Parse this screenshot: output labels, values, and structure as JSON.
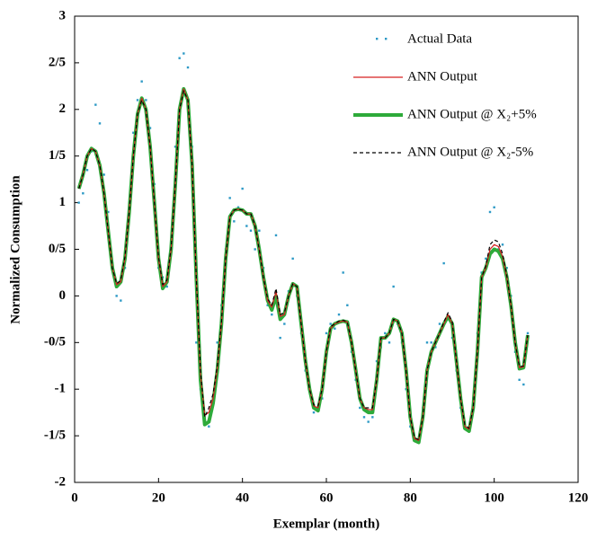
{
  "chart_data": {
    "type": "line",
    "x_label": "Exemplar (month)",
    "y_label": "Normalized Consumption",
    "x": [
      1,
      2,
      3,
      4,
      5,
      6,
      7,
      8,
      9,
      10,
      11,
      12,
      13,
      14,
      15,
      16,
      17,
      18,
      19,
      20,
      21,
      22,
      23,
      24,
      25,
      26,
      27,
      28,
      29,
      30,
      31,
      32,
      33,
      34,
      35,
      36,
      37,
      38,
      39,
      40,
      41,
      42,
      43,
      44,
      45,
      46,
      47,
      48,
      49,
      50,
      51,
      52,
      53,
      54,
      55,
      56,
      57,
      58,
      59,
      60,
      61,
      62,
      63,
      64,
      65,
      66,
      67,
      68,
      69,
      70,
      71,
      72,
      73,
      74,
      75,
      76,
      77,
      78,
      79,
      80,
      81,
      82,
      83,
      84,
      85,
      86,
      87,
      88,
      89,
      90,
      91,
      92,
      93,
      94,
      95,
      96,
      97,
      98,
      99,
      100,
      101,
      102,
      103,
      104,
      105,
      106,
      107,
      108
    ],
    "xlim": [
      0,
      120
    ],
    "xticks": [
      0,
      20,
      40,
      60,
      80,
      100,
      120
    ],
    "ylim": [
      -2,
      3
    ],
    "yticks": [
      -2,
      {
        "value": -1.5,
        "label": "-1/5"
      },
      -1,
      {
        "value": -0.5,
        "label": "-0/5"
      },
      0,
      {
        "value": 0.5,
        "label": "0/5"
      },
      1,
      {
        "value": 1.5,
        "label": "1/5"
      },
      2,
      {
        "value": 2.5,
        "label": "2/5"
      },
      3
    ],
    "series": [
      {
        "name": "Actual Data",
        "color": "#2e9ac6",
        "style": "dots",
        "values": [
          1.0,
          1.1,
          1.35,
          1.55,
          2.05,
          1.85,
          1.3,
          0.9,
          0.35,
          0.0,
          -0.05,
          0.3,
          1.0,
          1.75,
          2.1,
          2.3,
          2.1,
          1.8,
          1.2,
          0.3,
          0.2,
          0.1,
          0.45,
          1.6,
          2.55,
          2.6,
          2.45,
          1.6,
          -0.5,
          -1.0,
          -1.35,
          -1.4,
          -1.1,
          -0.5,
          -0.1,
          0.5,
          1.05,
          0.8,
          0.95,
          1.15,
          0.75,
          0.7,
          0.5,
          0.7,
          0.3,
          -0.1,
          -0.2,
          0.65,
          -0.45,
          -0.3,
          0.05,
          0.4,
          0.0,
          -0.4,
          -0.8,
          -1.0,
          -1.25,
          -1.2,
          -1.1,
          -0.4,
          -0.3,
          -0.35,
          -0.2,
          0.25,
          -0.1,
          -0.6,
          -0.9,
          -1.2,
          -1.3,
          -1.35,
          -1.3,
          -0.7,
          -0.55,
          -0.4,
          -0.5,
          0.1,
          -0.3,
          -0.5,
          -1.0,
          -1.4,
          -1.55,
          -1.55,
          -1.2,
          -0.5,
          -0.5,
          -0.55,
          -0.3,
          0.35,
          -0.25,
          -0.45,
          -0.8,
          -1.2,
          -1.35,
          -1.45,
          -1.1,
          -0.4,
          0.25,
          0.4,
          0.9,
          0.95,
          0.5,
          0.55,
          0.3,
          0.0,
          -0.6,
          -0.9,
          -0.95,
          -0.4
        ]
      },
      {
        "name": "ANN Output",
        "color": "#d62020",
        "style": "thin",
        "values": [
          1.15,
          1.3,
          1.5,
          1.58,
          1.55,
          1.4,
          1.1,
          0.7,
          0.3,
          0.12,
          0.15,
          0.4,
          0.9,
          1.5,
          1.95,
          2.12,
          2.0,
          1.6,
          1.0,
          0.4,
          0.1,
          0.15,
          0.5,
          1.2,
          2.0,
          2.22,
          2.1,
          1.4,
          0.2,
          -0.85,
          -1.28,
          -1.25,
          -1.1,
          -0.78,
          -0.3,
          0.4,
          0.85,
          0.92,
          0.93,
          0.92,
          0.88,
          0.88,
          0.75,
          0.5,
          0.2,
          -0.05,
          -0.12,
          0.05,
          -0.22,
          -0.2,
          0.0,
          0.13,
          0.1,
          -0.3,
          -0.7,
          -1.0,
          -1.18,
          -1.2,
          -1.0,
          -0.6,
          -0.35,
          -0.3,
          -0.28,
          -0.27,
          -0.28,
          -0.5,
          -0.8,
          -1.1,
          -1.2,
          -1.22,
          -1.22,
          -0.9,
          -0.45,
          -0.45,
          -0.4,
          -0.25,
          -0.27,
          -0.4,
          -0.8,
          -1.3,
          -1.53,
          -1.55,
          -1.3,
          -0.8,
          -0.6,
          -0.5,
          -0.4,
          -0.3,
          -0.2,
          -0.3,
          -0.7,
          -1.1,
          -1.4,
          -1.43,
          -1.2,
          -0.6,
          0.2,
          0.3,
          0.5,
          0.55,
          0.53,
          0.42,
          0.2,
          -0.1,
          -0.5,
          -0.77,
          -0.76,
          -0.42
        ]
      },
      {
        "name": "ANN Output @ X₂+5%",
        "color": "#2eaa3a",
        "style": "thick",
        "values": [
          1.15,
          1.3,
          1.5,
          1.58,
          1.55,
          1.4,
          1.1,
          0.7,
          0.3,
          0.1,
          0.15,
          0.4,
          0.9,
          1.5,
          1.95,
          2.12,
          2.0,
          1.6,
          1.0,
          0.4,
          0.08,
          0.15,
          0.5,
          1.2,
          2.0,
          2.22,
          2.1,
          1.4,
          0.2,
          -0.9,
          -1.38,
          -1.35,
          -1.15,
          -0.8,
          -0.3,
          0.4,
          0.85,
          0.92,
          0.93,
          0.92,
          0.88,
          0.88,
          0.75,
          0.5,
          0.2,
          -0.05,
          -0.15,
          0.0,
          -0.25,
          -0.2,
          0.0,
          0.13,
          0.1,
          -0.3,
          -0.7,
          -1.0,
          -1.2,
          -1.23,
          -1.0,
          -0.6,
          -0.35,
          -0.3,
          -0.28,
          -0.27,
          -0.28,
          -0.5,
          -0.8,
          -1.1,
          -1.22,
          -1.25,
          -1.25,
          -0.9,
          -0.45,
          -0.45,
          -0.4,
          -0.25,
          -0.27,
          -0.4,
          -0.8,
          -1.3,
          -1.55,
          -1.57,
          -1.3,
          -0.8,
          -0.6,
          -0.5,
          -0.4,
          -0.3,
          -0.22,
          -0.3,
          -0.7,
          -1.1,
          -1.42,
          -1.45,
          -1.2,
          -0.6,
          0.2,
          0.3,
          0.45,
          0.5,
          0.48,
          0.4,
          0.2,
          -0.1,
          -0.5,
          -0.78,
          -0.77,
          -0.42
        ]
      },
      {
        "name": "ANN Output @ X₂-5%",
        "color": "#000000",
        "style": "dashed",
        "values": [
          1.15,
          1.3,
          1.5,
          1.58,
          1.55,
          1.4,
          1.1,
          0.7,
          0.3,
          0.13,
          0.17,
          0.42,
          0.9,
          1.5,
          1.95,
          2.1,
          2.0,
          1.6,
          1.0,
          0.42,
          0.12,
          0.17,
          0.52,
          1.2,
          2.0,
          2.2,
          2.1,
          1.4,
          0.2,
          -0.8,
          -1.3,
          -1.2,
          -1.05,
          -0.75,
          -0.28,
          0.4,
          0.85,
          0.92,
          0.93,
          0.92,
          0.88,
          0.88,
          0.75,
          0.5,
          0.2,
          -0.03,
          -0.1,
          0.08,
          -0.2,
          -0.18,
          0.0,
          0.13,
          0.1,
          -0.3,
          -0.7,
          -1.0,
          -1.17,
          -1.18,
          -1.0,
          -0.6,
          -0.33,
          -0.3,
          -0.27,
          -0.26,
          -0.28,
          -0.5,
          -0.8,
          -1.1,
          -1.2,
          -1.2,
          -1.2,
          -0.9,
          -0.45,
          -0.45,
          -0.4,
          -0.25,
          -0.27,
          -0.4,
          -0.8,
          -1.3,
          -1.52,
          -1.54,
          -1.3,
          -0.8,
          -0.6,
          -0.5,
          -0.4,
          -0.28,
          -0.18,
          -0.28,
          -0.7,
          -1.1,
          -1.38,
          -1.42,
          -1.2,
          -0.6,
          0.2,
          0.32,
          0.55,
          0.6,
          0.58,
          0.45,
          0.22,
          -0.1,
          -0.5,
          -0.76,
          -0.75,
          -0.42
        ]
      }
    ]
  }
}
